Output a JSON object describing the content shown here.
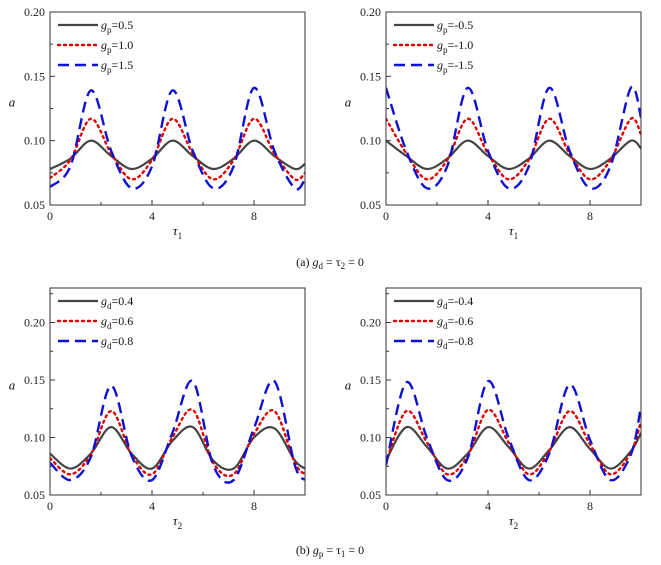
{
  "captions": [
    {
      "prefix": "(a) ",
      "var": "g",
      "sub": "d",
      "rest": " = τ",
      "sub2": "2",
      "tail": " = 0"
    },
    {
      "prefix": "(b) ",
      "var": "g",
      "sub": "p",
      "rest": " = τ",
      "sub2": "1",
      "tail": " = 0"
    }
  ],
  "chart_data": [
    {
      "type": "line",
      "panel": "a-left",
      "ylabel": "a",
      "xlabel_var": "τ",
      "xlabel_sub": "1",
      "xlim": [
        0,
        10
      ],
      "ylim": [
        0.05,
        0.2
      ],
      "xticks": [
        "0",
        "4",
        "8"
      ],
      "yticks": [
        "0.05",
        "0.10",
        "0.15",
        "0.20"
      ],
      "legend_position": "top-left",
      "series": [
        {
          "name_var": "g",
          "name_sub": "p",
          "name_value": "=0.5",
          "color": "#444444",
          "dash": "solid",
          "x": [
            0,
            0.8,
            1.6,
            2.4,
            3.2,
            4.0,
            4.8,
            5.6,
            6.4,
            7.2,
            8.0,
            8.8,
            9.6,
            10
          ],
          "y": [
            0.078,
            0.086,
            0.1,
            0.088,
            0.078,
            0.086,
            0.1,
            0.088,
            0.078,
            0.086,
            0.1,
            0.088,
            0.078,
            0.082
          ]
        },
        {
          "name_var": "g",
          "name_sub": "p",
          "name_value": "=1.0",
          "color": "#e00000",
          "dash": "dot",
          "x": [
            0,
            0.8,
            1.6,
            2.4,
            3.2,
            4.0,
            4.8,
            5.6,
            6.4,
            7.2,
            8.0,
            8.8,
            9.6,
            10
          ],
          "y": [
            0.071,
            0.085,
            0.117,
            0.09,
            0.07,
            0.085,
            0.117,
            0.09,
            0.07,
            0.085,
            0.117,
            0.09,
            0.07,
            0.075
          ]
        },
        {
          "name_var": "g",
          "name_sub": "p",
          "name_value": "=1.5",
          "color": "#1010d0",
          "dash": "dash",
          "x": [
            0,
            0.8,
            1.6,
            2.4,
            3.2,
            4.0,
            4.8,
            5.6,
            6.4,
            7.2,
            8.0,
            8.8,
            9.6,
            10
          ],
          "y": [
            0.064,
            0.08,
            0.139,
            0.092,
            0.063,
            0.08,
            0.139,
            0.092,
            0.063,
            0.08,
            0.141,
            0.092,
            0.063,
            0.07
          ]
        }
      ]
    },
    {
      "type": "line",
      "panel": "a-right",
      "ylabel": "a",
      "xlabel_var": "τ",
      "xlabel_sub": "1",
      "xlim": [
        0,
        10
      ],
      "ylim": [
        0.05,
        0.2
      ],
      "xticks": [
        "0",
        "4",
        "8"
      ],
      "yticks": [
        "0.05",
        "0.10",
        "0.15",
        "0.20"
      ],
      "legend_position": "top-left",
      "series": [
        {
          "name_var": "g",
          "name_sub": "p",
          "name_value": "=-0.5",
          "color": "#444444",
          "dash": "solid",
          "x": [
            0,
            0.8,
            1.6,
            2.4,
            3.2,
            4.0,
            4.8,
            5.6,
            6.4,
            7.2,
            8.0,
            8.8,
            9.6,
            10
          ],
          "y": [
            0.1,
            0.088,
            0.078,
            0.086,
            0.1,
            0.088,
            0.078,
            0.086,
            0.1,
            0.088,
            0.078,
            0.086,
            0.1,
            0.094
          ]
        },
        {
          "name_var": "g",
          "name_sub": "p",
          "name_value": "=-1.0",
          "color": "#e00000",
          "dash": "dot",
          "x": [
            0,
            0.8,
            1.6,
            2.4,
            3.2,
            4.0,
            4.8,
            5.6,
            6.4,
            7.2,
            8.0,
            8.8,
            9.6,
            10
          ],
          "y": [
            0.117,
            0.09,
            0.07,
            0.085,
            0.117,
            0.09,
            0.07,
            0.085,
            0.117,
            0.09,
            0.07,
            0.085,
            0.117,
            0.105
          ]
        },
        {
          "name_var": "g",
          "name_sub": "p",
          "name_value": "=-1.5",
          "color": "#1010d0",
          "dash": "dash",
          "x": [
            0,
            0.8,
            1.6,
            2.4,
            3.2,
            4.0,
            4.8,
            5.6,
            6.4,
            7.2,
            8.0,
            8.8,
            9.6,
            10
          ],
          "y": [
            0.141,
            0.092,
            0.063,
            0.08,
            0.141,
            0.092,
            0.063,
            0.08,
            0.141,
            0.092,
            0.063,
            0.08,
            0.141,
            0.118
          ]
        }
      ]
    },
    {
      "type": "line",
      "panel": "b-left",
      "ylabel": "a",
      "xlabel_var": "τ",
      "xlabel_sub": "2",
      "xlim": [
        0,
        10
      ],
      "ylim": [
        0.05,
        0.23
      ],
      "xticks": [
        "0",
        "4",
        "8"
      ],
      "yticks": [
        "0.05",
        "0.10",
        "0.15",
        "0.20"
      ],
      "legend_position": "top-left",
      "series": [
        {
          "name_var": "g",
          "name_sub": "d",
          "name_value": "=0.4",
          "color": "#444444",
          "dash": "solid",
          "x": [
            0,
            0.8,
            1.6,
            2.4,
            3.2,
            4.0,
            4.8,
            5.6,
            6.4,
            7.2,
            8.0,
            8.8,
            9.6,
            10
          ],
          "y": [
            0.086,
            0.073,
            0.086,
            0.109,
            0.086,
            0.073,
            0.097,
            0.109,
            0.08,
            0.073,
            0.1,
            0.108,
            0.08,
            0.073
          ]
        },
        {
          "name_var": "g",
          "name_sub": "d",
          "name_value": "=0.6",
          "color": "#e00000",
          "dash": "dot",
          "x": [
            0,
            0.8,
            1.6,
            2.4,
            3.2,
            4.0,
            4.8,
            5.6,
            6.4,
            7.2,
            8.0,
            8.8,
            9.6,
            10
          ],
          "y": [
            0.082,
            0.068,
            0.085,
            0.123,
            0.085,
            0.068,
            0.1,
            0.124,
            0.078,
            0.068,
            0.103,
            0.123,
            0.078,
            0.068
          ]
        },
        {
          "name_var": "g",
          "name_sub": "d",
          "name_value": "=0.8",
          "color": "#1010d0",
          "dash": "dash",
          "x": [
            0,
            0.8,
            1.6,
            2.4,
            3.2,
            4.0,
            4.8,
            5.6,
            6.4,
            7.2,
            8.0,
            8.8,
            9.6,
            10
          ],
          "y": [
            0.078,
            0.063,
            0.083,
            0.145,
            0.084,
            0.063,
            0.104,
            0.149,
            0.076,
            0.063,
            0.108,
            0.149,
            0.076,
            0.063
          ]
        }
      ]
    },
    {
      "type": "line",
      "panel": "b-right",
      "ylabel": "a",
      "xlabel_var": "τ",
      "xlabel_sub": "2",
      "xlim": [
        0,
        10
      ],
      "ylim": [
        0.05,
        0.23
      ],
      "xticks": [
        "0",
        "4",
        "8"
      ],
      "yticks": [
        "0.05",
        "0.10",
        "0.15",
        "0.20"
      ],
      "legend_position": "top-left",
      "series": [
        {
          "name_var": "g",
          "name_sub": "d",
          "name_value": "=-0.4",
          "color": "#444444",
          "dash": "solid",
          "x": [
            0,
            0.8,
            1.6,
            2.4,
            3.2,
            4.0,
            4.8,
            5.6,
            6.4,
            7.2,
            8.0,
            8.8,
            9.6,
            10
          ],
          "y": [
            0.08,
            0.109,
            0.092,
            0.073,
            0.086,
            0.109,
            0.092,
            0.073,
            0.089,
            0.109,
            0.09,
            0.073,
            0.088,
            0.104
          ]
        },
        {
          "name_var": "g",
          "name_sub": "d",
          "name_value": "=-0.6",
          "color": "#e00000",
          "dash": "dot",
          "x": [
            0,
            0.8,
            1.6,
            2.4,
            3.2,
            4.0,
            4.8,
            5.6,
            6.4,
            7.2,
            8.0,
            8.8,
            9.6,
            10
          ],
          "y": [
            0.078,
            0.123,
            0.096,
            0.068,
            0.084,
            0.124,
            0.096,
            0.068,
            0.088,
            0.123,
            0.094,
            0.068,
            0.087,
            0.114
          ]
        },
        {
          "name_var": "g",
          "name_sub": "d",
          "name_value": "=-0.8",
          "color": "#1010d0",
          "dash": "dash",
          "x": [
            0,
            0.8,
            1.6,
            2.4,
            3.2,
            4.0,
            4.8,
            5.6,
            6.4,
            7.2,
            8.0,
            8.8,
            9.6,
            10
          ],
          "y": [
            0.076,
            0.148,
            0.1,
            0.063,
            0.082,
            0.149,
            0.1,
            0.063,
            0.086,
            0.146,
            0.098,
            0.063,
            0.085,
            0.127
          ]
        }
      ]
    }
  ]
}
